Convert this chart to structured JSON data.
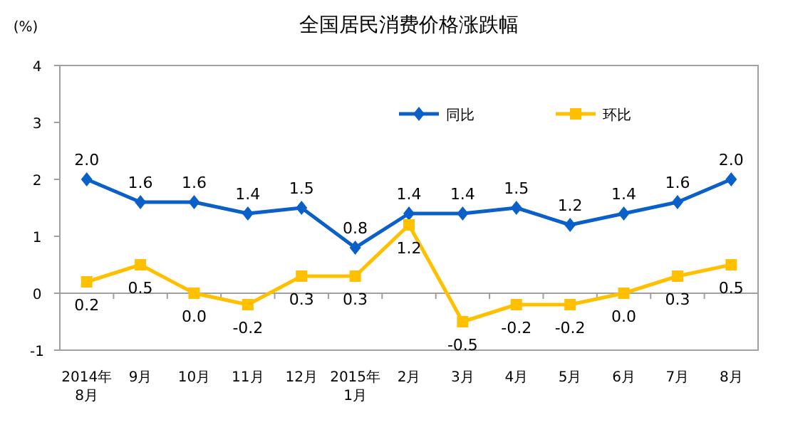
{
  "chart_data": {
    "type": "line",
    "title": "全国居民消费价格涨跌幅",
    "ylabel": "(%)",
    "categories": [
      "2014年\n8月",
      "9月",
      "10月",
      "11月",
      "12月",
      "2015年\n1月",
      "2月",
      "3月",
      "4月",
      "5月",
      "6月",
      "7月",
      "8月"
    ],
    "series": [
      {
        "name": "同比",
        "color": "#0a5fc8",
        "marker": "diamond",
        "values": [
          2.0,
          1.6,
          1.6,
          1.4,
          1.5,
          0.8,
          1.4,
          1.4,
          1.5,
          1.2,
          1.4,
          1.6,
          2.0
        ],
        "value_labels": [
          "2.0",
          "1.6",
          "1.6",
          "1.4",
          "1.5",
          "0.8",
          "1.4",
          "1.4",
          "1.5",
          "1.2",
          "1.4",
          "1.6",
          "2.0"
        ]
      },
      {
        "name": "环比",
        "color": "#ffc000",
        "marker": "square",
        "values": [
          0.2,
          0.5,
          0.0,
          -0.2,
          0.3,
          0.3,
          1.2,
          -0.5,
          -0.2,
          -0.2,
          0.0,
          0.3,
          0.5
        ],
        "value_labels": [
          "0.2",
          "0.5",
          "0.0",
          "-0.2",
          "0.3",
          "0.3",
          "1.2",
          "-0.5",
          "-0.2",
          "-0.2",
          "0.0",
          "0.3",
          "0.5"
        ]
      }
    ],
    "ylim": [
      -1,
      4
    ],
    "yticks": [
      -1,
      0,
      1,
      2,
      3,
      4
    ],
    "legend": "top"
  }
}
